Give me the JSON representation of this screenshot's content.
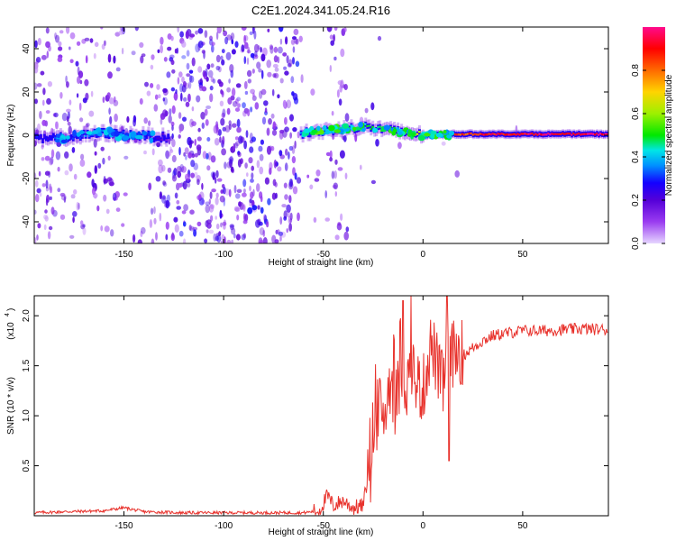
{
  "title": "C2E1.2024.341.05.24.R16",
  "chart_data": [
    {
      "type": "heatmap",
      "xlabel": "Height of straight line (km)",
      "ylabel": "Frequency (Hz)",
      "xlim": [
        -195,
        93
      ],
      "ylim": [
        -50,
        50
      ],
      "xticks": [
        -150,
        -100,
        -50,
        0,
        50
      ],
      "yticks": [
        -40,
        -20,
        0,
        20,
        40
      ],
      "colorbar": {
        "label": "Normalized spectral amplitude",
        "range": [
          0.0,
          1.0
        ],
        "ticks": [
          0.0,
          0.2,
          0.4,
          0.6,
          0.8
        ],
        "colors": [
          "#e6d6ff",
          "#9a3cf0",
          "#5500d8",
          "#1400ff",
          "#0090ff",
          "#00e6e6",
          "#00e800",
          "#9df000",
          "#ffd400",
          "#ff6a00",
          "#ff0000",
          "#ff0a8c"
        ]
      },
      "ridge": [
        {
          "x": -195,
          "f": -2,
          "amp": 0.25
        },
        {
          "x": -180,
          "f": -1,
          "amp": 0.28
        },
        {
          "x": -160,
          "f": 1,
          "amp": 0.35
        },
        {
          "x": -145,
          "f": 0,
          "amp": 0.32
        },
        {
          "x": -130,
          "f": -1,
          "amp": 0.2
        },
        {
          "x": -60,
          "f": 1,
          "amp": 0.35
        },
        {
          "x": -40,
          "f": 3,
          "amp": 0.45
        },
        {
          "x": -30,
          "f": 4,
          "amp": 0.5
        },
        {
          "x": -15,
          "f": 2,
          "amp": 0.55
        },
        {
          "x": 0,
          "f": 0,
          "amp": 0.75
        },
        {
          "x": 10,
          "f": 0.5,
          "amp": 0.8
        },
        {
          "x": 30,
          "f": 0.5,
          "amp": 0.9
        },
        {
          "x": 60,
          "f": 0.5,
          "amp": 0.95
        },
        {
          "x": 93,
          "f": 0.5,
          "amp": 0.95
        }
      ],
      "colorbar_position": "right"
    },
    {
      "type": "line",
      "xlabel": "Height of straight line (km)",
      "ylabel": "SNR (10 * v/v)",
      "yscale_label": "(x10",
      "yscale_exponent": "4",
      "xlim": [
        -195,
        93
      ],
      "ylim": [
        0,
        2.2
      ],
      "xticks": [
        -150,
        -100,
        -50,
        0,
        50
      ],
      "yticks": [
        0.5,
        1.0,
        1.5,
        2.0
      ],
      "color": "#e8322c",
      "series": [
        {
          "x": [
            -195,
            -180,
            -160,
            -150,
            -140,
            -120,
            -100,
            -80,
            -60,
            -52,
            -48,
            -45,
            -40,
            -35,
            -30,
            -28,
            -26,
            -24,
            -22,
            -20,
            -18,
            -16,
            -14,
            -12,
            -10,
            -8,
            -6,
            -4,
            -2,
            0,
            2,
            4,
            6,
            8,
            10,
            12,
            14,
            16,
            18,
            20,
            25,
            30,
            35,
            40,
            50,
            60,
            70,
            80,
            93
          ],
          "y": [
            0.03,
            0.04,
            0.05,
            0.08,
            0.04,
            0.03,
            0.03,
            0.03,
            0.03,
            0.05,
            0.2,
            0.1,
            0.15,
            0.08,
            0.1,
            0.35,
            0.8,
            0.9,
            1.1,
            0.95,
            1.2,
            1.4,
            1.1,
            1.3,
            1.5,
            1.25,
            1.6,
            1.35,
            1.3,
            1.25,
            1.5,
            1.7,
            1.6,
            1.4,
            1.3,
            1.6,
            1.65,
            1.6,
            1.7,
            1.6,
            1.68,
            1.75,
            1.8,
            1.82,
            1.85,
            1.85,
            1.86,
            1.87,
            1.86
          ]
        }
      ]
    }
  ]
}
